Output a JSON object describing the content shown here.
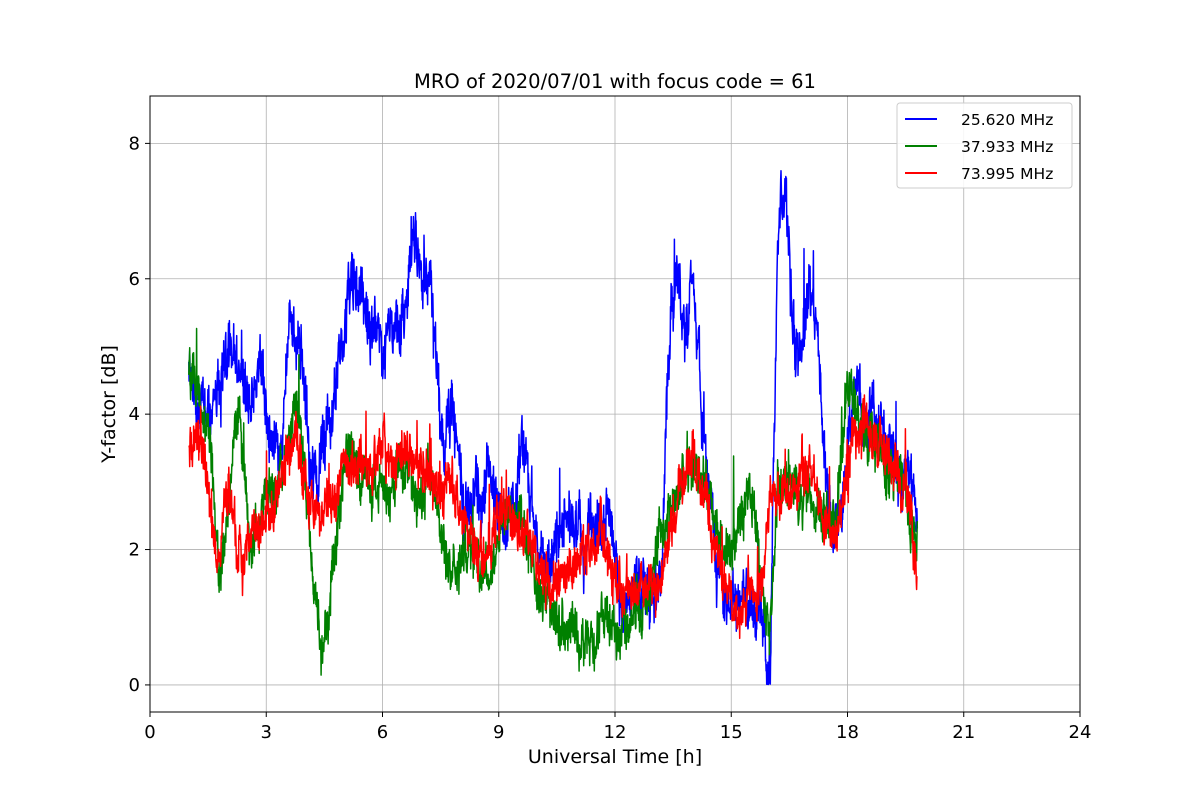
{
  "chart_data": {
    "type": "line",
    "title": "MRO of 2020/07/01 with focus code = 61",
    "xlabel": "Universal Time [h]",
    "ylabel": "Y-factor [dB]",
    "xlim": [
      0,
      24
    ],
    "ylim": [
      -0.4,
      8.7
    ],
    "xticks": [
      0,
      3,
      6,
      9,
      12,
      15,
      18,
      21,
      24
    ],
    "yticks": [
      0,
      2,
      4,
      6,
      8
    ],
    "grid": true,
    "legend_position": "top-right",
    "series": [
      {
        "name": "25.620 MHz",
        "color": "#0000ff",
        "x": [
          1.0,
          1.3,
          1.6,
          1.9,
          2.1,
          2.3,
          2.6,
          2.9,
          3.1,
          3.4,
          3.6,
          3.9,
          4.1,
          4.3,
          4.6,
          4.9,
          5.1,
          5.3,
          5.5,
          5.7,
          6.0,
          6.3,
          6.6,
          6.8,
          7.0,
          7.2,
          7.4,
          7.6,
          7.8,
          8.0,
          8.2,
          8.4,
          8.6,
          8.8,
          9.0,
          9.2,
          9.4,
          9.6,
          9.8,
          10.0,
          10.3,
          10.6,
          10.9,
          11.2,
          11.5,
          11.8,
          12.0,
          12.2,
          12.4,
          12.6,
          12.8,
          13.0,
          13.2,
          13.4,
          13.6,
          13.8,
          14.0,
          14.2,
          14.4,
          14.6,
          14.8,
          15.0,
          15.3,
          15.6,
          15.8,
          16.0,
          16.2,
          16.4,
          16.6,
          16.8,
          17.0,
          17.2,
          17.4,
          17.6,
          17.8,
          18.0,
          18.2,
          18.4,
          18.6,
          18.8,
          19.0,
          19.2,
          19.4,
          19.6,
          19.8
        ],
        "y": [
          4.4,
          4.2,
          3.9,
          4.6,
          5.3,
          4.6,
          4.2,
          4.8,
          3.6,
          3.4,
          5.3,
          5.0,
          3.7,
          3.0,
          3.8,
          4.8,
          5.8,
          6.2,
          5.8,
          5.4,
          5.2,
          5.5,
          5.6,
          6.5,
          6.6,
          5.8,
          5.0,
          3.5,
          4.2,
          3.2,
          2.5,
          3.0,
          2.8,
          3.3,
          2.6,
          2.4,
          2.8,
          3.4,
          2.9,
          1.9,
          1.7,
          2.6,
          2.4,
          1.9,
          2.5,
          2.6,
          2.0,
          1.0,
          1.4,
          1.5,
          1.4,
          1.2,
          1.7,
          5.4,
          6.1,
          5.1,
          6.0,
          4.3,
          2.9,
          2.0,
          1.4,
          1.0,
          1.3,
          1.2,
          0.8,
          0.3,
          6.8,
          7.4,
          5.2,
          5.0,
          5.8,
          5.5,
          3.2,
          2.3,
          2.0,
          3.8,
          4.7,
          4.0,
          3.8,
          4.0,
          3.5,
          3.3,
          2.8,
          3.1,
          2.2
        ],
        "noise": 0.42
      },
      {
        "name": "37.933 MHz",
        "color": "#008000",
        "x": [
          1.0,
          1.3,
          1.6,
          1.8,
          2.0,
          2.3,
          2.6,
          2.9,
          3.2,
          3.5,
          3.8,
          4.0,
          4.2,
          4.4,
          4.6,
          4.8,
          5.0,
          5.2,
          5.5,
          5.8,
          6.1,
          6.4,
          6.7,
          7.0,
          7.3,
          7.6,
          7.9,
          8.2,
          8.5,
          8.8,
          9.1,
          9.4,
          9.7,
          10.0,
          10.3,
          10.6,
          10.9,
          11.2,
          11.5,
          11.8,
          12.1,
          12.4,
          12.7,
          13.0,
          13.3,
          13.6,
          13.9,
          14.2,
          14.5,
          14.8,
          15.1,
          15.4,
          15.6,
          15.8,
          16.0,
          16.2,
          16.5,
          16.8,
          17.1,
          17.4,
          17.7,
          18.0,
          18.2,
          18.5,
          18.8,
          19.0,
          19.2,
          19.4,
          19.6,
          19.8
        ],
        "y": [
          4.6,
          4.3,
          3.4,
          1.5,
          2.6,
          3.9,
          1.8,
          2.6,
          2.9,
          3.5,
          4.2,
          3.2,
          1.5,
          0.5,
          1.0,
          2.2,
          3.1,
          3.4,
          3.0,
          2.8,
          2.9,
          3.0,
          3.3,
          2.7,
          3.0,
          2.0,
          1.5,
          2.0,
          1.7,
          1.6,
          2.5,
          2.4,
          2.1,
          1.3,
          1.2,
          1.0,
          0.9,
          0.7,
          0.8,
          1.0,
          0.6,
          0.9,
          1.2,
          1.8,
          2.3,
          2.7,
          3.2,
          3.3,
          2.5,
          1.9,
          2.2,
          2.9,
          2.4,
          1.2,
          0.8,
          3.2,
          2.9,
          2.7,
          2.8,
          2.4,
          2.2,
          4.5,
          4.0,
          3.6,
          3.7,
          3.3,
          3.2,
          3.0,
          2.5,
          2.2
        ],
        "noise": 0.36
      },
      {
        "name": "73.995 MHz",
        "color": "#ff0000",
        "x": [
          1.0,
          1.3,
          1.6,
          1.8,
          2.0,
          2.3,
          2.6,
          2.9,
          3.2,
          3.5,
          3.8,
          4.1,
          4.4,
          4.7,
          5.0,
          5.3,
          5.6,
          5.9,
          6.2,
          6.5,
          6.8,
          7.1,
          7.4,
          7.7,
          8.0,
          8.3,
          8.6,
          8.9,
          9.2,
          9.5,
          9.8,
          10.1,
          10.4,
          10.7,
          11.0,
          11.3,
          11.6,
          11.9,
          12.2,
          12.5,
          12.8,
          13.1,
          13.4,
          13.7,
          14.0,
          14.3,
          14.6,
          14.9,
          15.2,
          15.5,
          15.8,
          16.0,
          16.2,
          16.5,
          16.8,
          17.1,
          17.4,
          17.7,
          18.0,
          18.2,
          18.5,
          18.8,
          19.0,
          19.3,
          19.6,
          19.8
        ],
        "y": [
          3.4,
          3.8,
          2.2,
          1.9,
          3.0,
          2.0,
          2.1,
          2.4,
          2.6,
          3.3,
          3.5,
          2.7,
          2.4,
          2.8,
          3.3,
          3.4,
          3.2,
          3.2,
          3.3,
          3.4,
          3.5,
          3.2,
          3.0,
          2.9,
          2.6,
          2.2,
          1.9,
          2.3,
          2.5,
          2.3,
          2.0,
          1.7,
          1.5,
          1.6,
          1.9,
          2.0,
          2.2,
          1.8,
          1.4,
          1.2,
          1.5,
          1.3,
          2.2,
          3.0,
          3.4,
          2.8,
          2.0,
          1.5,
          1.1,
          1.4,
          1.7,
          2.6,
          2.9,
          2.8,
          3.2,
          3.2,
          2.4,
          2.2,
          3.2,
          3.6,
          3.8,
          3.6,
          3.4,
          3.0,
          2.8,
          1.5
        ],
        "noise": 0.34
      }
    ]
  }
}
